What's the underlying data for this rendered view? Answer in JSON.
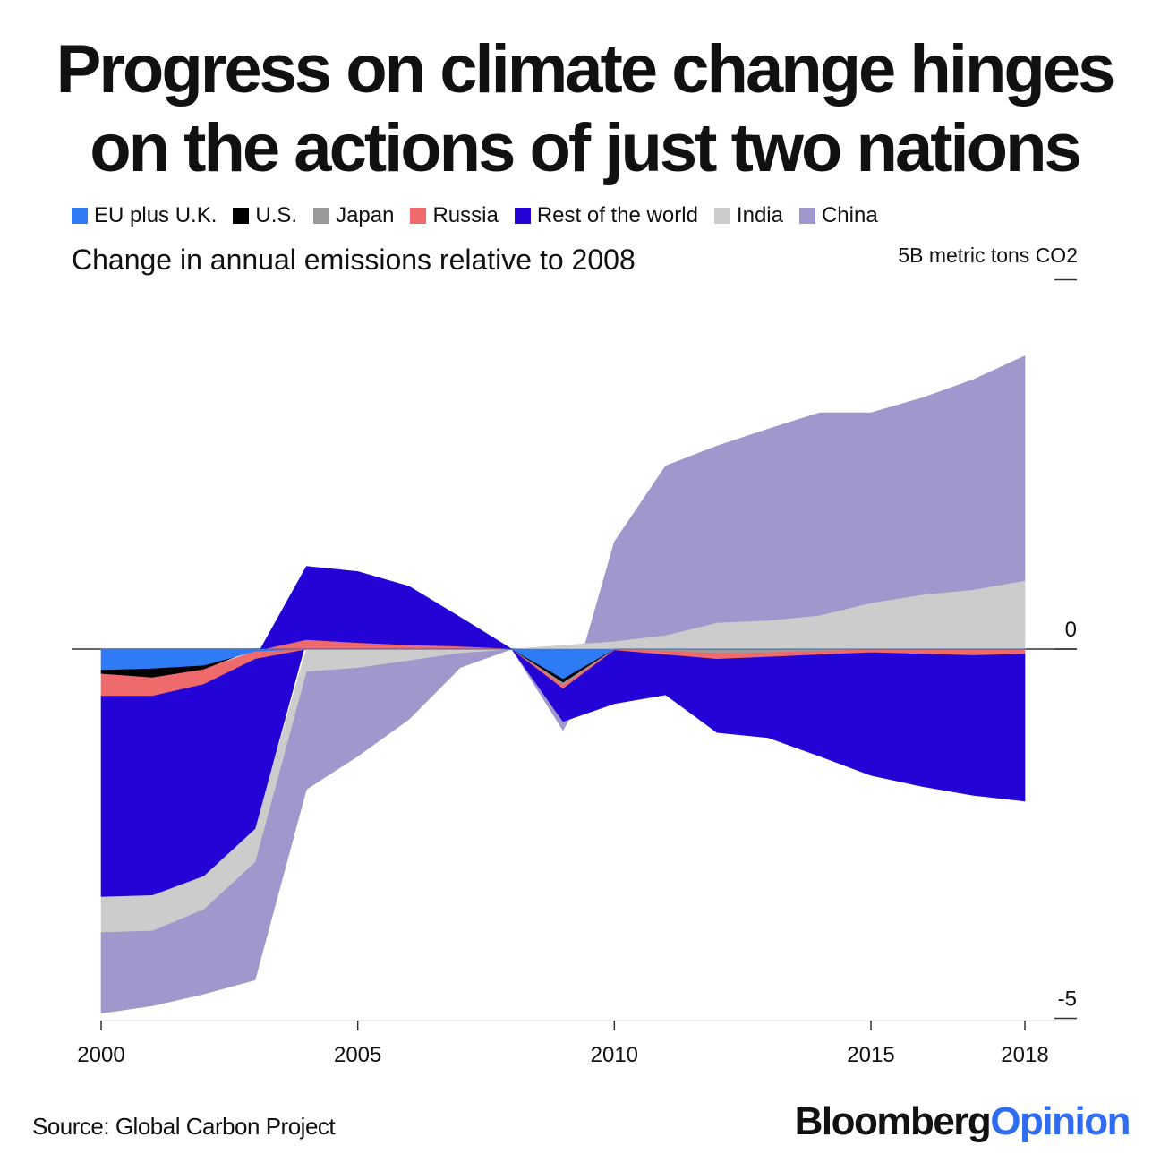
{
  "title_line1": "Progress on climate change hinges",
  "title_line2": "on the actions of just two nations",
  "legend": [
    {
      "label": "EU plus U.K.",
      "color": "#2f7bf5"
    },
    {
      "label": "U.S.",
      "color": "#000000"
    },
    {
      "label": "Japan",
      "color": "#9a9a9a"
    },
    {
      "label": "Russia",
      "color": "#ef6a6a"
    },
    {
      "label": "Rest of the world",
      "color": "#2403d6"
    },
    {
      "label": "India",
      "color": "#cccccc"
    },
    {
      "label": "China",
      "color": "#a097cc"
    }
  ],
  "subtitle": "Change in annual emissions relative to 2008",
  "unit_label": "5B metric tons CO2",
  "source": "Source: Global Carbon Project",
  "brand": {
    "part1": "Bloomberg",
    "part2": "Opinion"
  },
  "chart_data": {
    "type": "area",
    "stacking": "positive and negative values stacked separately from zero",
    "x": [
      2000,
      2001,
      2002,
      2003,
      2004,
      2005,
      2006,
      2007,
      2008,
      2009,
      2010,
      2011,
      2012,
      2013,
      2014,
      2015,
      2016,
      2017,
      2018
    ],
    "xticks": [
      2000,
      2005,
      2010,
      2015,
      2018
    ],
    "yticks": [
      {
        "value": 5,
        "label": ""
      },
      {
        "value": 0,
        "label": "0"
      },
      {
        "value": -5,
        "label": "-5"
      }
    ],
    "ylim": [
      -5,
      5
    ],
    "ylabel": "",
    "series": [
      {
        "name": "EU plus U.K.",
        "color": "#2f7bf5",
        "values": [
          -0.28,
          -0.26,
          -0.22,
          -0.03,
          0.0,
          0.0,
          0.0,
          0.0,
          0,
          -0.4,
          0.0,
          0.0,
          0.0,
          0.0,
          0.0,
          0.0,
          0.0,
          0.0,
          0.0
        ]
      },
      {
        "name": "U.S.",
        "color": "#000000",
        "values": [
          -0.05,
          -0.12,
          -0.05,
          0.0,
          0.0,
          0.0,
          0.0,
          0.0,
          0,
          -0.05,
          0.0,
          0.0,
          0.0,
          0.0,
          0.0,
          0.0,
          0.0,
          0.0,
          0.0
        ]
      },
      {
        "name": "Japan",
        "color": "#9a9a9a",
        "values": [
          0.0,
          0.0,
          0.0,
          0.0,
          0.0,
          0.0,
          0.0,
          0.0,
          0,
          -0.03,
          0.0,
          -0.02,
          -0.05,
          -0.04,
          -0.02,
          0.0,
          0.0,
          0.0,
          0.0
        ]
      },
      {
        "name": "Russia",
        "color": "#ef6a6a",
        "values": [
          -0.3,
          -0.25,
          -0.2,
          -0.1,
          0.12,
          0.08,
          0.05,
          0.03,
          0,
          -0.05,
          -0.01,
          -0.05,
          -0.08,
          -0.06,
          -0.05,
          -0.04,
          -0.06,
          -0.08,
          -0.06
        ]
      },
      {
        "name": "Rest of the world",
        "color": "#2403d6",
        "values": [
          -2.72,
          -2.7,
          -2.6,
          -2.3,
          1.0,
          0.97,
          0.8,
          0.4,
          0,
          -0.45,
          -0.73,
          -0.55,
          -1.0,
          -1.1,
          -1.38,
          -1.67,
          -1.8,
          -1.9,
          -2.0
        ]
      },
      {
        "name": "India",
        "color": "#cccccc",
        "values": [
          -0.48,
          -0.48,
          -0.45,
          -0.45,
          -0.3,
          -0.25,
          -0.15,
          -0.05,
          0,
          0.05,
          0.1,
          0.18,
          0.35,
          0.38,
          0.45,
          0.62,
          0.73,
          0.8,
          0.92
        ]
      },
      {
        "name": "China",
        "color": "#a097cc",
        "values": [
          -1.1,
          -1.02,
          -1.15,
          -1.6,
          -1.6,
          -1.2,
          -0.8,
          -0.2,
          0,
          -0.12,
          1.35,
          2.3,
          2.4,
          2.6,
          2.75,
          2.58,
          2.67,
          2.85,
          3.05
        ]
      }
    ]
  }
}
